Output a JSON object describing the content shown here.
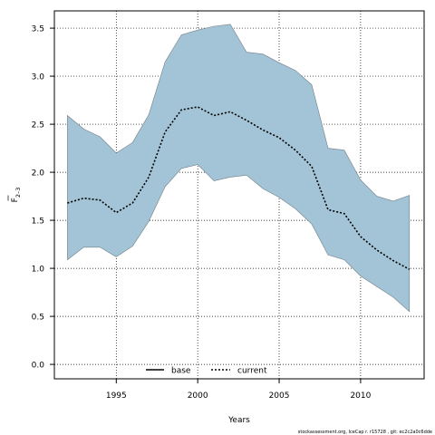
{
  "chart_data": {
    "type": "area",
    "xlabel": "Years",
    "ylabel_main": "F",
    "ylabel_sub": "2–3",
    "xlim": [
      1991.2,
      2013.9
    ],
    "ylim": [
      -0.15,
      3.68
    ],
    "x_ticks": [
      1995,
      2000,
      2005,
      2010
    ],
    "y_ticks": [
      0.0,
      0.5,
      1.0,
      1.5,
      2.0,
      2.5,
      3.0,
      3.5
    ],
    "y_tick_labels": [
      "0.0",
      "0.5",
      "1.0",
      "1.5",
      "2.0",
      "2.5",
      "3.0",
      "3.5"
    ],
    "grid": true,
    "legend_position": "bottom-center",
    "x": [
      1992,
      1993,
      1994,
      1995,
      1996,
      1997,
      1998,
      1999,
      2000,
      2001,
      2002,
      2003,
      2004,
      2005,
      2006,
      2007,
      2008,
      2009,
      2010,
      2011,
      2012,
      2013
    ],
    "series": [
      {
        "name": "current",
        "style": "dotted",
        "color": "#000000",
        "values": [
          1.68,
          1.73,
          1.71,
          1.58,
          1.68,
          1.95,
          2.42,
          2.65,
          2.68,
          2.59,
          2.63,
          2.54,
          2.44,
          2.36,
          2.23,
          2.06,
          1.61,
          1.57,
          1.33,
          1.19,
          1.08,
          0.99
        ]
      }
    ],
    "band": {
      "color": "#a3c4d6",
      "edge_color": "#6f7f89",
      "upper": [
        2.59,
        2.45,
        2.37,
        2.2,
        2.31,
        2.6,
        3.15,
        3.43,
        3.48,
        3.52,
        3.54,
        3.25,
        3.23,
        3.14,
        3.06,
        2.91,
        2.25,
        2.23,
        1.92,
        1.75,
        1.7,
        1.76
      ],
      "lower": [
        1.09,
        1.22,
        1.22,
        1.12,
        1.23,
        1.49,
        1.85,
        2.04,
        2.08,
        1.91,
        1.95,
        1.97,
        1.83,
        1.74,
        1.62,
        1.46,
        1.14,
        1.09,
        0.92,
        0.81,
        0.7,
        0.55
      ]
    },
    "legend": [
      {
        "label": "base",
        "style": "solid"
      },
      {
        "label": "current",
        "style": "dotted"
      }
    ],
    "footer": "stockassessment.org, IceCap r. r15728 , git: ec2c2a0c6dde"
  }
}
